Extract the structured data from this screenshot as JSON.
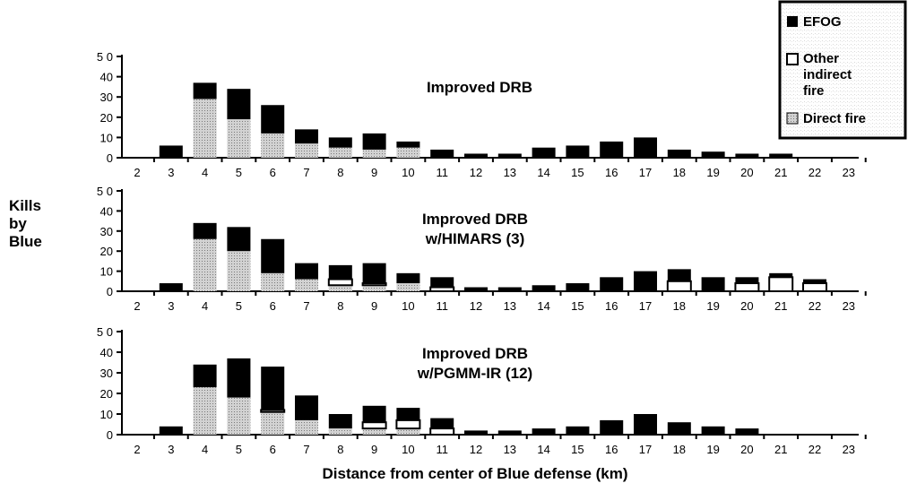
{
  "chart_data": {
    "type": "bar",
    "stacked": true,
    "ylabel": "Kills\nby\nBlue",
    "xlabel": "Distance from center of Blue defense (km)",
    "x_ticks": [
      "2",
      "3",
      "4",
      "5",
      "6",
      "7",
      "8",
      "9",
      "10",
      "11",
      "12",
      "13",
      "14",
      "15",
      "16",
      "17",
      "18",
      "19",
      "20",
      "21",
      "22",
      "23"
    ],
    "categories": [
      "3",
      "4",
      "5",
      "6",
      "7",
      "8",
      "9",
      "10",
      "11",
      "12",
      "13",
      "14",
      "15",
      "16",
      "17",
      "18",
      "19",
      "20",
      "21",
      "22"
    ],
    "ylim": [
      0,
      50
    ],
    "y_ticks": [
      "0",
      "10",
      "20",
      "30",
      "40",
      "5 0"
    ],
    "legend": {
      "placement": "top-right",
      "entries": [
        {
          "label": "EFOG",
          "color": "#000000"
        },
        {
          "label": "Other\nindirect\nfire",
          "color": "#ffffff"
        },
        {
          "label": "Direct fire",
          "color": "#bdbdbd"
        }
      ]
    },
    "panels": [
      {
        "title": "Improved DRB",
        "series": [
          {
            "name": "Direct fire",
            "values": [
              0,
              29,
              19,
              12,
              7,
              5,
              4,
              5,
              0,
              0,
              0,
              0,
              0,
              0,
              0,
              0,
              0,
              0,
              0,
              0
            ]
          },
          {
            "name": "Other indirect fire",
            "values": [
              0,
              0,
              0,
              0,
              0,
              0,
              0,
              0,
              0,
              0,
              0,
              0,
              0,
              0,
              0,
              0,
              0,
              0,
              0,
              0
            ]
          },
          {
            "name": "EFOG",
            "values": [
              6,
              8,
              15,
              14,
              7,
              5,
              8,
              3,
              4,
              2,
              2,
              5,
              6,
              8,
              10,
              4,
              3,
              2,
              2,
              0
            ]
          }
        ]
      },
      {
        "title": "Improved DRB\nw/HIMARS (3)",
        "series": [
          {
            "name": "Direct fire",
            "values": [
              0,
              26,
              20,
              9,
              6,
              3,
              3,
              4,
              0,
              0,
              0,
              0,
              0,
              0,
              0,
              0,
              0,
              0,
              0,
              0
            ]
          },
          {
            "name": "Other indirect fire",
            "values": [
              0,
              0,
              0,
              0,
              0,
              3,
              1,
              0,
              2,
              0,
              0,
              0,
              0,
              0,
              0,
              5,
              0,
              4,
              7,
              4
            ]
          },
          {
            "name": "EFOG",
            "values": [
              4,
              8,
              12,
              17,
              8,
              7,
              10,
              5,
              5,
              2,
              2,
              3,
              4,
              7,
              10,
              6,
              7,
              3,
              2,
              2
            ]
          }
        ]
      },
      {
        "title": "Improved DRB\nw/PGMM-IR (12)",
        "series": [
          {
            "name": "Direct fire",
            "values": [
              0,
              23,
              18,
              11,
              7,
              3,
              3,
              3,
              0,
              0,
              0,
              0,
              0,
              0,
              0,
              0,
              0,
              0,
              0,
              0
            ]
          },
          {
            "name": "Other indirect fire",
            "values": [
              0,
              0,
              0,
              1,
              0,
              0,
              3,
              4,
              3,
              0,
              0,
              0,
              0,
              0,
              0,
              0,
              0,
              0,
              0,
              0
            ]
          },
          {
            "name": "EFOG",
            "values": [
              4,
              11,
              19,
              21,
              12,
              7,
              8,
              6,
              5,
              2,
              2,
              3,
              4,
              7,
              10,
              6,
              4,
              3,
              0,
              0
            ]
          }
        ]
      }
    ]
  }
}
